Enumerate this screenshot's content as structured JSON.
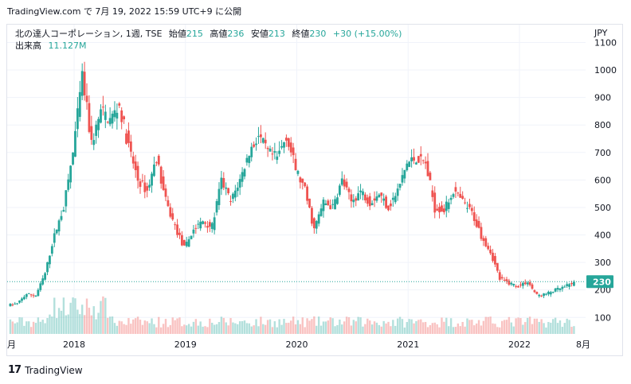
{
  "caption": "TradingView.com で 7月 19, 2022 15:59 UTC+9 に公開",
  "legend": {
    "symbol": "北の達人コーポレーション, 1週, TSE",
    "open_label": "始値",
    "open": "215",
    "high_label": "高値",
    "high": "236",
    "low_label": "安値",
    "low": "213",
    "close_label": "終値",
    "close": "230",
    "change": "+30 (+15.00%)",
    "volume_label": "出来高",
    "volume": "11.127M"
  },
  "footer": {
    "brand": "TradingView"
  },
  "colors": {
    "up": "#26a69a",
    "down": "#ef5350",
    "grid": "#f0f3fa",
    "text": "#131722"
  },
  "chart_data": {
    "type": "candlestick",
    "currency": "JPY",
    "y_ticks": [
      100,
      200,
      300,
      400,
      500,
      600,
      700,
      800,
      900,
      1000,
      1100
    ],
    "ylim": [
      40,
      1165
    ],
    "x_ticks": [
      "月",
      "2018",
      "2019",
      "2020",
      "2021",
      "2022",
      "8月"
    ],
    "last_price": 230,
    "last_price_label": "230",
    "anchors": [
      [
        "2017-06",
        145
      ],
      [
        "2017-07",
        150
      ],
      [
        "2017-08",
        185
      ],
      [
        "2017-09",
        180
      ],
      [
        "2017-10",
        260
      ],
      [
        "2017-11",
        400
      ],
      [
        "2017-12",
        500
      ],
      [
        "2018-01",
        700
      ],
      [
        "2018-02",
        980
      ],
      [
        "2018-03",
        730
      ],
      [
        "2018-04",
        850
      ],
      [
        "2018-05",
        820
      ],
      [
        "2018-06",
        870
      ],
      [
        "2018-07",
        720
      ],
      [
        "2018-08",
        600
      ],
      [
        "2018-09",
        560
      ],
      [
        "2018-10",
        680
      ],
      [
        "2018-11",
        520
      ],
      [
        "2018-12",
        430
      ],
      [
        "2019-01",
        350
      ],
      [
        "2019-02",
        420
      ],
      [
        "2019-03",
        450
      ],
      [
        "2019-04",
        430
      ],
      [
        "2019-05",
        600
      ],
      [
        "2019-06",
        520
      ],
      [
        "2019-07",
        600
      ],
      [
        "2019-08",
        700
      ],
      [
        "2019-09",
        760
      ],
      [
        "2019-10",
        700
      ],
      [
        "2019-11",
        680
      ],
      [
        "2019-12",
        760
      ],
      [
        "2020-01",
        640
      ],
      [
        "2020-02",
        560
      ],
      [
        "2020-03",
        420
      ],
      [
        "2020-04",
        520
      ],
      [
        "2020-05",
        500
      ],
      [
        "2020-06",
        600
      ],
      [
        "2020-07",
        520
      ],
      [
        "2020-08",
        560
      ],
      [
        "2020-09",
        520
      ],
      [
        "2020-10",
        550
      ],
      [
        "2020-11",
        500
      ],
      [
        "2020-12",
        560
      ],
      [
        "2021-01",
        660
      ],
      [
        "2021-02",
        680
      ],
      [
        "2021-03",
        660
      ],
      [
        "2021-04",
        500
      ],
      [
        "2021-05",
        490
      ],
      [
        "2021-06",
        560
      ],
      [
        "2021-07",
        520
      ],
      [
        "2021-08",
        480
      ],
      [
        "2021-09",
        400
      ],
      [
        "2021-10",
        340
      ],
      [
        "2021-11",
        240
      ],
      [
        "2021-12",
        225
      ],
      [
        "2022-01",
        215
      ],
      [
        "2022-02",
        230
      ],
      [
        "2022-03",
        180
      ],
      [
        "2022-04",
        185
      ],
      [
        "2022-05",
        200
      ],
      [
        "2022-06",
        210
      ],
      [
        "2022-07",
        230
      ]
    ]
  }
}
